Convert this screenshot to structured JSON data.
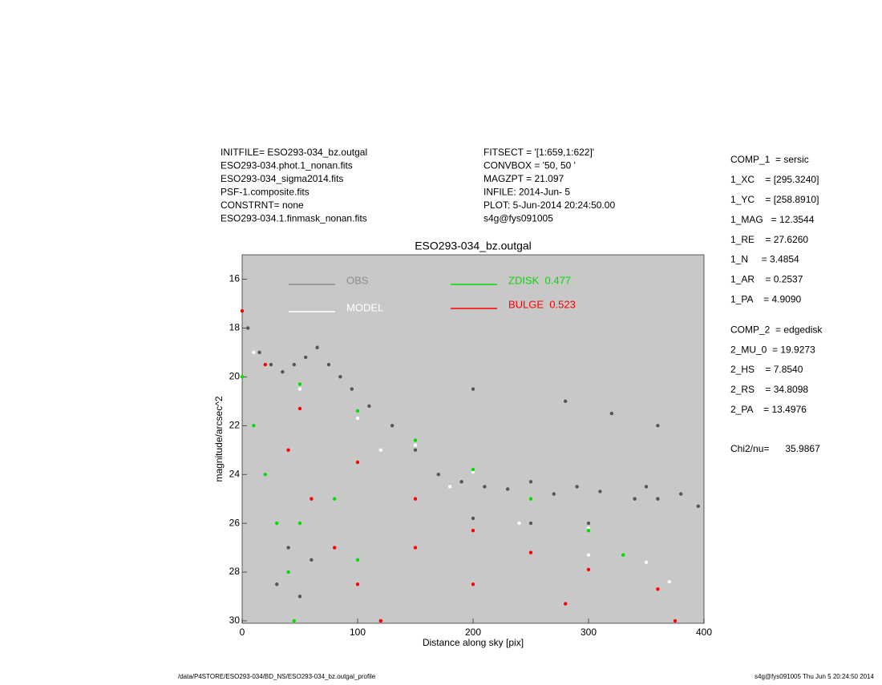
{
  "header": {
    "left": [
      "INITFILE= ESO293-034_bz.outgal",
      "ESO293-034.phot.1_nonan.fits",
      "ESO293-034_sigma2014.fits",
      "PSF-1.composite.fits",
      "CONSTRNT= none",
      "ESO293-034.1.finmask_nonan.fits"
    ],
    "middle": [
      "FITSECT = '[1:659,1:622]'",
      "CONVBOX = '50, 50  '",
      "MAGZPT =            21.097",
      "INFILE: 2014-Jun- 5",
      "PLOT:  5-Jun-2014 20:24:50.00",
      "s4g@fys091005"
    ]
  },
  "params": [
    "COMP_1  = sersic",
    "1_XC    = [295.3240]",
    "1_YC    = [258.8910]",
    "1_MAG   = 12.3544",
    "1_RE    = 27.6260",
    "1_N     = 3.4854",
    "1_AR    = 0.2537",
    "1_PA    = 4.9090",
    "COMP_2  = edgedisk",
    "2_MU_0  = 19.9273",
    "2_HS    = 7.8540",
    "2_RS    = 34.8098",
    "2_PA    = 13.4976",
    "Chi2/nu=      35.9867"
  ],
  "footer": {
    "left": "/data/P4STORE/ESO293-034/BD_NS/ESO293-034_bz.outgal_profile",
    "right": "s4g@fys091005  Thu Jun  5 20:24:50 2014"
  },
  "chart_data": {
    "type": "scatter",
    "title": "ESO293-034_bz.outgal",
    "x_label": "Distance along sky [pix]",
    "y_label": "magnitude/arcsec^2",
    "xlim": [
      0,
      400
    ],
    "ylim": [
      15,
      30.1
    ],
    "y_inverted": true,
    "xticks": [
      0,
      100,
      200,
      300,
      400
    ],
    "yticks": [
      16,
      18,
      20,
      22,
      24,
      26,
      28,
      30
    ],
    "background": "#c8c8c8",
    "series": [
      {
        "name": "OBS",
        "color": "#555555",
        "legend_color": "#8c8c8c",
        "x": [
          5,
          15,
          25,
          35,
          45,
          55,
          65,
          75,
          85,
          95,
          110,
          130,
          150,
          170,
          190,
          210,
          230,
          250,
          270,
          290,
          310,
          340,
          350,
          360,
          380,
          395,
          40,
          30,
          50,
          60,
          200,
          280,
          320,
          360,
          300,
          250,
          200
        ],
        "values": [
          18,
          19,
          19.5,
          19.8,
          19.5,
          19.2,
          18.8,
          19.5,
          20,
          20.5,
          21.2,
          22,
          23,
          24,
          24.3,
          24.5,
          24.6,
          24.3,
          24.8,
          24.5,
          24.7,
          25,
          24.5,
          25,
          24.8,
          25.3,
          27,
          28.5,
          29,
          27.5,
          20.5,
          21,
          21.5,
          22,
          26,
          26,
          25.8
        ]
      },
      {
        "name": "MODEL",
        "color": "#ffffff",
        "legend_color": "#ffffff",
        "x": [
          10,
          50,
          100,
          150,
          200,
          250,
          300,
          350,
          370,
          20,
          120,
          180,
          240,
          300
        ],
        "values": [
          19,
          20.5,
          21.7,
          22.8,
          23.9,
          25,
          26.2,
          27.6,
          28.4,
          19.5,
          23,
          24.5,
          26,
          27.3
        ]
      },
      {
        "name": "ZDISK  0.477",
        "color": "#00dd00",
        "legend_color": "#00dd00",
        "x": [
          0,
          50,
          100,
          150,
          200,
          250,
          300,
          330,
          10,
          20,
          30,
          40,
          45,
          50,
          100,
          80
        ],
        "values": [
          20,
          20.3,
          21.4,
          22.6,
          23.8,
          25,
          26.3,
          27.3,
          22,
          24,
          26,
          28,
          30,
          26,
          27.5,
          25
        ]
      },
      {
        "name": "BULGE  0.523",
        "color": "#ff0000",
        "legend_color": "#ff0000",
        "x": [
          0,
          20,
          50,
          100,
          150,
          200,
          250,
          300,
          360,
          375,
          40,
          60,
          80,
          100,
          120,
          200,
          280,
          150
        ],
        "values": [
          17.3,
          19.5,
          21.3,
          23.5,
          25,
          26.3,
          27.2,
          27.9,
          28.7,
          30,
          23,
          25,
          27,
          28.5,
          30,
          28.5,
          29.3,
          27
        ]
      }
    ]
  }
}
